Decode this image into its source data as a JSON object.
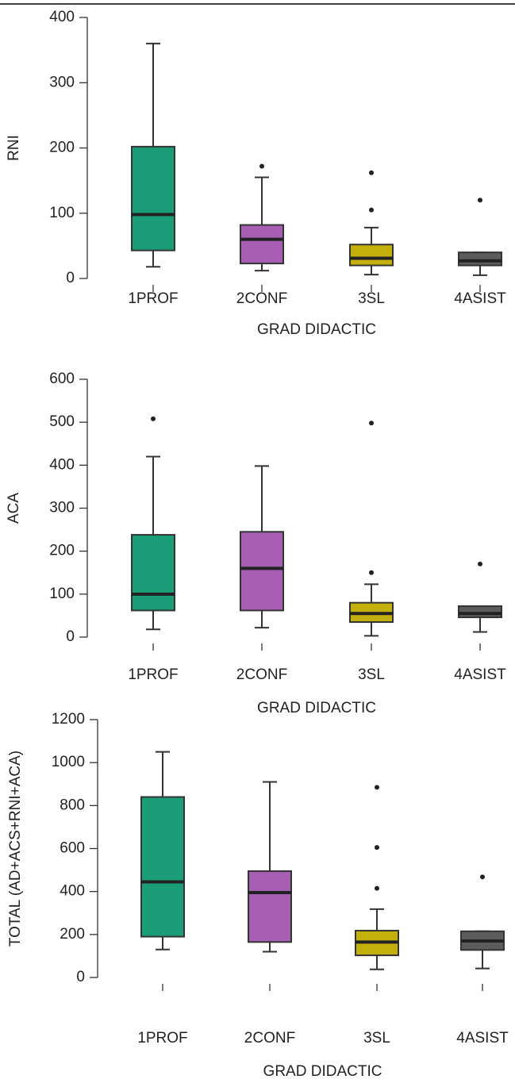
{
  "chart_data": [
    {
      "type": "box",
      "ylabel": "RNI",
      "xlabel": "GRAD DIDACTIC",
      "categories": [
        "1PROF",
        "2CONF",
        "3SL",
        "4ASIST"
      ],
      "colors": [
        "#1b9e77",
        "#a65fb3",
        "#c4b00c",
        "#5c5c5c"
      ],
      "boxes": [
        {
          "min": 18,
          "q1": 43,
          "median": 98,
          "q3": 202,
          "max": 360,
          "outliers": []
        },
        {
          "min": 12,
          "q1": 23,
          "median": 60,
          "q3": 82,
          "max": 155,
          "outliers": [
            172
          ]
        },
        {
          "min": 6,
          "q1": 20,
          "median": 31,
          "q3": 52,
          "max": 78,
          "outliers": [
            105,
            162
          ]
        },
        {
          "min": 5,
          "q1": 20,
          "median": 27,
          "q3": 40,
          "max": 40,
          "outliers": [
            120
          ]
        }
      ],
      "ylim": [
        0,
        400
      ],
      "yticks": [
        0,
        100,
        200,
        300,
        400
      ]
    },
    {
      "type": "box",
      "ylabel": "ACA",
      "xlabel": "GRAD DIDACTIC",
      "categories": [
        "1PROF",
        "2CONF",
        "3SL",
        "4ASIST"
      ],
      "colors": [
        "#1b9e77",
        "#a65fb3",
        "#c4b00c",
        "#5c5c5c"
      ],
      "boxes": [
        {
          "min": 18,
          "q1": 62,
          "median": 100,
          "q3": 238,
          "max": 420,
          "outliers": [
            508
          ]
        },
        {
          "min": 22,
          "q1": 62,
          "median": 160,
          "q3": 245,
          "max": 398,
          "outliers": []
        },
        {
          "min": 3,
          "q1": 35,
          "median": 55,
          "q3": 80,
          "max": 123,
          "outliers": [
            150,
            498
          ]
        },
        {
          "min": 12,
          "q1": 46,
          "median": 55,
          "q3": 72,
          "max": 72,
          "outliers": [
            170
          ]
        }
      ],
      "ylim": [
        0,
        600
      ],
      "yticks": [
        0,
        100,
        200,
        300,
        400,
        500,
        600
      ]
    },
    {
      "type": "box",
      "ylabel": "TOTAL (AD+ACS+RNI+ACA)",
      "xlabel": "GRAD DIDACTIC",
      "categories": [
        "1PROF",
        "2CONF",
        "3SL",
        "4ASIST"
      ],
      "colors": [
        "#1b9e77",
        "#a65fb3",
        "#c4b00c",
        "#5c5c5c"
      ],
      "boxes": [
        {
          "min": 130,
          "q1": 190,
          "median": 445,
          "q3": 840,
          "max": 1050,
          "outliers": []
        },
        {
          "min": 120,
          "q1": 165,
          "median": 395,
          "q3": 495,
          "max": 910,
          "outliers": []
        },
        {
          "min": 38,
          "q1": 103,
          "median": 165,
          "q3": 218,
          "max": 318,
          "outliers": [
            415,
            605,
            885
          ]
        },
        {
          "min": 42,
          "q1": 128,
          "median": 170,
          "q3": 215,
          "max": 215,
          "outliers": [
            468
          ]
        }
      ],
      "ylim": [
        0,
        1200
      ],
      "yticks": [
        0,
        200,
        400,
        600,
        800,
        1000,
        1200
      ]
    }
  ]
}
